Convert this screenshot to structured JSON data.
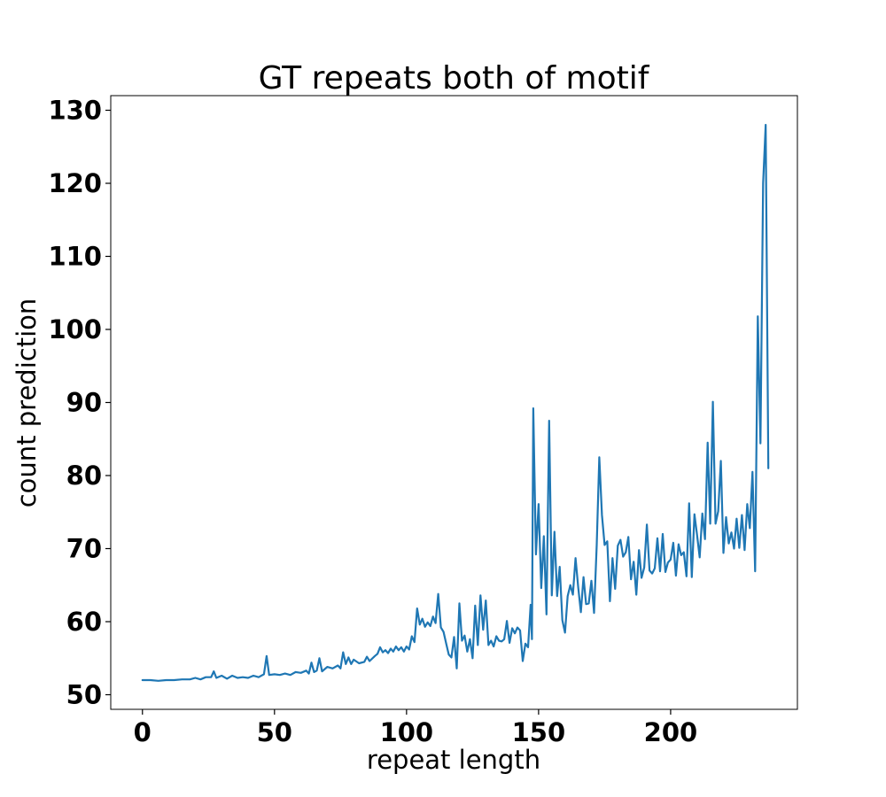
{
  "chart_data": {
    "type": "line",
    "title": "GT repeats both of motif",
    "xlabel": "repeat length",
    "ylabel": "count prediction",
    "xlim": [
      -12,
      248
    ],
    "ylim": [
      48,
      132
    ],
    "xticks": [
      0,
      50,
      100,
      150,
      200
    ],
    "yticks": [
      50,
      60,
      70,
      80,
      90,
      100,
      110,
      120,
      130
    ],
    "grid": false,
    "series": [
      {
        "color": "#1f77b4",
        "points": [
          [
            0,
            52.0
          ],
          [
            3,
            52.0
          ],
          [
            6,
            51.9
          ],
          [
            9,
            52.0
          ],
          [
            12,
            52.0
          ],
          [
            15,
            52.1
          ],
          [
            18,
            52.1
          ],
          [
            20,
            52.3
          ],
          [
            22,
            52.1
          ],
          [
            24,
            52.4
          ],
          [
            26,
            52.4
          ],
          [
            27,
            53.2
          ],
          [
            28,
            52.3
          ],
          [
            30,
            52.6
          ],
          [
            32,
            52.2
          ],
          [
            34,
            52.6
          ],
          [
            36,
            52.3
          ],
          [
            38,
            52.4
          ],
          [
            40,
            52.3
          ],
          [
            42,
            52.6
          ],
          [
            44,
            52.4
          ],
          [
            46,
            52.8
          ],
          [
            47,
            55.3
          ],
          [
            48,
            52.7
          ],
          [
            50,
            52.8
          ],
          [
            52,
            52.7
          ],
          [
            54,
            52.9
          ],
          [
            56,
            52.7
          ],
          [
            58,
            53.1
          ],
          [
            60,
            53.0
          ],
          [
            62,
            53.3
          ],
          [
            63,
            52.9
          ],
          [
            64,
            54.4
          ],
          [
            65,
            53.1
          ],
          [
            66,
            53.3
          ],
          [
            67,
            55.0
          ],
          [
            68,
            53.2
          ],
          [
            70,
            53.8
          ],
          [
            72,
            53.6
          ],
          [
            74,
            54.0
          ],
          [
            75,
            53.6
          ],
          [
            76,
            55.8
          ],
          [
            77,
            54.2
          ],
          [
            78,
            55.1
          ],
          [
            79,
            54.2
          ],
          [
            80,
            54.8
          ],
          [
            82,
            54.3
          ],
          [
            84,
            54.5
          ],
          [
            85,
            55.2
          ],
          [
            86,
            54.6
          ],
          [
            88,
            55.3
          ],
          [
            89,
            55.6
          ],
          [
            90,
            56.5
          ],
          [
            91,
            55.8
          ],
          [
            92,
            56.1
          ],
          [
            93,
            55.7
          ],
          [
            94,
            56.3
          ],
          [
            95,
            55.9
          ],
          [
            96,
            56.6
          ],
          [
            97,
            56.1
          ],
          [
            98,
            56.5
          ],
          [
            99,
            55.9
          ],
          [
            100,
            56.6
          ],
          [
            101,
            56.2
          ],
          [
            102,
            58.0
          ],
          [
            103,
            57.2
          ],
          [
            104,
            61.8
          ],
          [
            105,
            59.6
          ],
          [
            106,
            60.4
          ],
          [
            107,
            59.3
          ],
          [
            108,
            59.9
          ],
          [
            109,
            59.4
          ],
          [
            110,
            60.7
          ],
          [
            111,
            59.8
          ],
          [
            112,
            63.8
          ],
          [
            113,
            59.2
          ],
          [
            114,
            58.6
          ],
          [
            115,
            57.0
          ],
          [
            116,
            55.5
          ],
          [
            117,
            55.1
          ],
          [
            118,
            57.9
          ],
          [
            119,
            53.6
          ],
          [
            120,
            62.5
          ],
          [
            121,
            57.4
          ],
          [
            122,
            58.1
          ],
          [
            123,
            55.9
          ],
          [
            124,
            57.6
          ],
          [
            125,
            55.0
          ],
          [
            126,
            62.2
          ],
          [
            127,
            56.8
          ],
          [
            128,
            63.6
          ],
          [
            129,
            58.9
          ],
          [
            130,
            62.9
          ],
          [
            131,
            56.8
          ],
          [
            132,
            57.4
          ],
          [
            133,
            56.6
          ],
          [
            134,
            58.0
          ],
          [
            135,
            57.4
          ],
          [
            136,
            57.3
          ],
          [
            137,
            57.6
          ],
          [
            138,
            60.1
          ],
          [
            139,
            57.1
          ],
          [
            140,
            59.1
          ],
          [
            141,
            58.4
          ],
          [
            142,
            59.2
          ],
          [
            143,
            58.8
          ],
          [
            144,
            54.6
          ],
          [
            145,
            57.0
          ],
          [
            146,
            56.5
          ],
          [
            147,
            62.3
          ],
          [
            147.5,
            57.6
          ],
          [
            148,
            89.2
          ],
          [
            149,
            69.2
          ],
          [
            150,
            76.1
          ],
          [
            151,
            64.6
          ],
          [
            152,
            71.7
          ],
          [
            153,
            61.0
          ],
          [
            154,
            87.5
          ],
          [
            155,
            63.6
          ],
          [
            156,
            72.3
          ],
          [
            157,
            63.5
          ],
          [
            158,
            67.5
          ],
          [
            159,
            60.2
          ],
          [
            160,
            58.5
          ],
          [
            161,
            63.5
          ],
          [
            162,
            65.0
          ],
          [
            163,
            63.7
          ],
          [
            164,
            68.7
          ],
          [
            165,
            64.7
          ],
          [
            166,
            61.3
          ],
          [
            167,
            66.1
          ],
          [
            168,
            62.4
          ],
          [
            169,
            62.5
          ],
          [
            170,
            65.6
          ],
          [
            171,
            61.2
          ],
          [
            172,
            70.5
          ],
          [
            173,
            82.5
          ],
          [
            174,
            74.6
          ],
          [
            175,
            70.5
          ],
          [
            176,
            71.0
          ],
          [
            177,
            62.8
          ],
          [
            178,
            68.7
          ],
          [
            179,
            64.5
          ],
          [
            180,
            70.4
          ],
          [
            181,
            71.2
          ],
          [
            182,
            68.9
          ],
          [
            183,
            69.5
          ],
          [
            184,
            71.6
          ],
          [
            185,
            65.8
          ],
          [
            186,
            68.2
          ],
          [
            187,
            63.7
          ],
          [
            188,
            69.8
          ],
          [
            189,
            66.0
          ],
          [
            190,
            67.4
          ],
          [
            191,
            73.3
          ],
          [
            192,
            67.0
          ],
          [
            193,
            66.6
          ],
          [
            194,
            67.3
          ],
          [
            195,
            71.4
          ],
          [
            196,
            66.9
          ],
          [
            197,
            72.0
          ],
          [
            198,
            66.8
          ],
          [
            199,
            68.1
          ],
          [
            200,
            68.5
          ],
          [
            201,
            70.8
          ],
          [
            202,
            66.3
          ],
          [
            203,
            70.6
          ],
          [
            204,
            69.1
          ],
          [
            205,
            69.5
          ],
          [
            206,
            66.2
          ],
          [
            207,
            76.2
          ],
          [
            208,
            66.1
          ],
          [
            209,
            74.7
          ],
          [
            210,
            71.9
          ],
          [
            211,
            68.8
          ],
          [
            212,
            74.8
          ],
          [
            213,
            71.3
          ],
          [
            214,
            84.5
          ],
          [
            215,
            73.4
          ],
          [
            216,
            90.1
          ],
          [
            217,
            73.4
          ],
          [
            218,
            75.1
          ],
          [
            219,
            82.0
          ],
          [
            220,
            69.4
          ],
          [
            221,
            74.3
          ],
          [
            222,
            70.7
          ],
          [
            223,
            72.2
          ],
          [
            224,
            70.0
          ],
          [
            225,
            74.1
          ],
          [
            226,
            70.1
          ],
          [
            227,
            74.6
          ],
          [
            228,
            69.8
          ],
          [
            229,
            76.1
          ],
          [
            230,
            72.8
          ],
          [
            231,
            80.5
          ],
          [
            232,
            66.9
          ],
          [
            233,
            101.8
          ],
          [
            234,
            84.4
          ],
          [
            235,
            120.0
          ],
          [
            236,
            128.0
          ],
          [
            237,
            81.0
          ]
        ]
      }
    ]
  }
}
